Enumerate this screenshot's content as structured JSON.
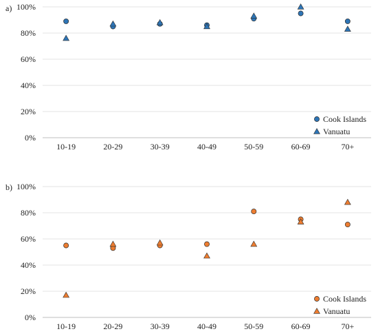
{
  "chart_data": [
    {
      "panel": "a)",
      "type": "scatter",
      "categories": [
        "10-19",
        "20-29",
        "30-39",
        "40-49",
        "50-59",
        "60-69",
        "70+"
      ],
      "ylim": [
        0,
        100
      ],
      "yticks": [
        "0%",
        "20%",
        "40%",
        "60%",
        "80%",
        "100%"
      ],
      "grid": true,
      "legend_position": "bottom-right",
      "series": [
        {
          "name": "Cook Islands",
          "marker": "circle",
          "color": "#2e75b6",
          "values": [
            89,
            85,
            87,
            86,
            91,
            95,
            89
          ]
        },
        {
          "name": "Vanuatu",
          "marker": "triangle",
          "color": "#2e75b6",
          "values": [
            76,
            87,
            88,
            85,
            93,
            100,
            83
          ]
        }
      ]
    },
    {
      "panel": "b)",
      "type": "scatter",
      "categories": [
        "10-19",
        "20-29",
        "30-39",
        "40-49",
        "50-59",
        "60-69",
        "70+"
      ],
      "ylim": [
        0,
        100
      ],
      "yticks": [
        "0%",
        "20%",
        "40%",
        "60%",
        "80%",
        "100%"
      ],
      "grid": true,
      "legend_position": "bottom-right",
      "series": [
        {
          "name": "Cook Islands",
          "marker": "circle",
          "color": "#ed7d31",
          "values": [
            55,
            53,
            55,
            56,
            81,
            75,
            71
          ]
        },
        {
          "name": "Vanuatu",
          "marker": "triangle",
          "color": "#ed7d31",
          "values": [
            17,
            56,
            57,
            47,
            56,
            73,
            88
          ]
        }
      ]
    }
  ]
}
